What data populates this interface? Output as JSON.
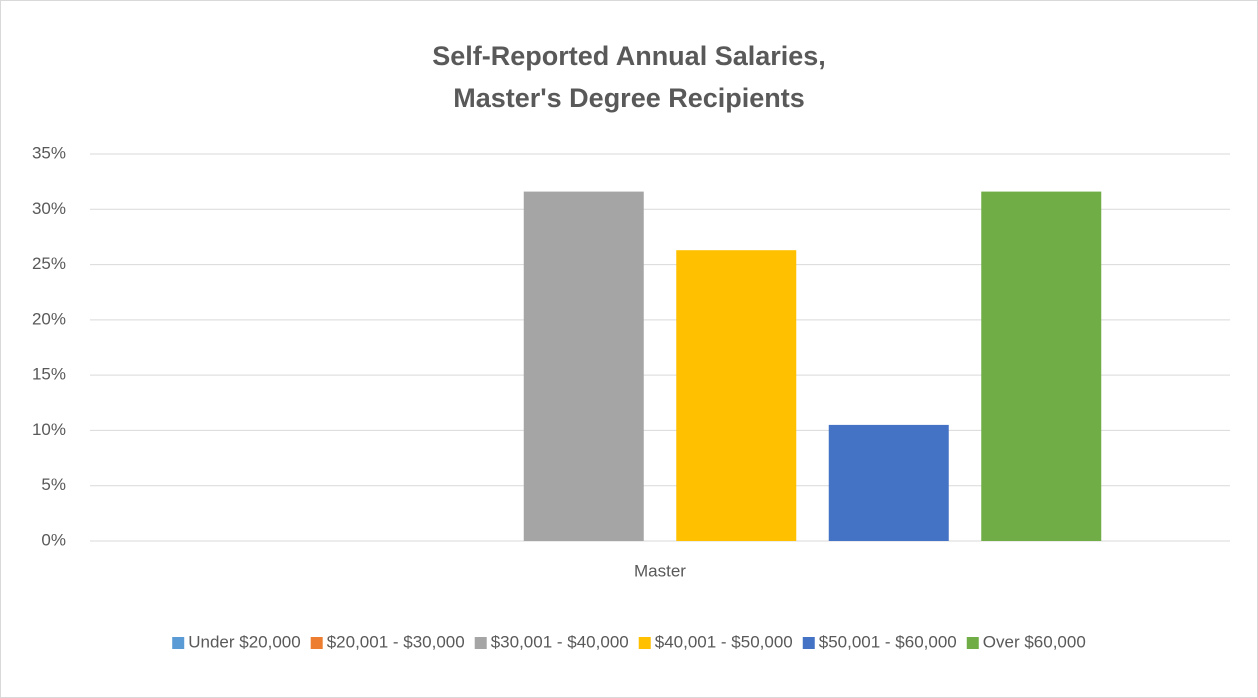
{
  "chart_data": {
    "type": "bar",
    "title": [
      "Self-Reported Annual Salaries,",
      "Master's Degree Recipients"
    ],
    "categories": [
      "Master"
    ],
    "series": [
      {
        "name": "Under $20,000",
        "color": "#5b9bd5",
        "values": [
          0
        ]
      },
      {
        "name": "$20,001 - $30,000",
        "color": "#ed7d31",
        "values": [
          0
        ]
      },
      {
        "name": "$30,001 - $40,000",
        "color": "#a5a5a5",
        "values": [
          31.6
        ]
      },
      {
        "name": "$40,001 - $50,000",
        "color": "#ffc000",
        "values": [
          26.3
        ]
      },
      {
        "name": "$50,001 - $60,000",
        "color": "#4472c4",
        "values": [
          10.5
        ]
      },
      {
        "name": "Over $60,000",
        "color": "#70ad47",
        "values": [
          31.6
        ]
      }
    ],
    "ylim": [
      0,
      35
    ],
    "yticks": [
      {
        "value": 0,
        "label": "0%"
      },
      {
        "value": 5,
        "label": "5%"
      },
      {
        "value": 10,
        "label": "10%"
      },
      {
        "value": 15,
        "label": "15%"
      },
      {
        "value": 20,
        "label": "20%"
      },
      {
        "value": 25,
        "label": "25%"
      },
      {
        "value": 30,
        "label": "30%"
      },
      {
        "value": 35,
        "label": "35%"
      }
    ],
    "grid": true,
    "legend": "bottom"
  }
}
